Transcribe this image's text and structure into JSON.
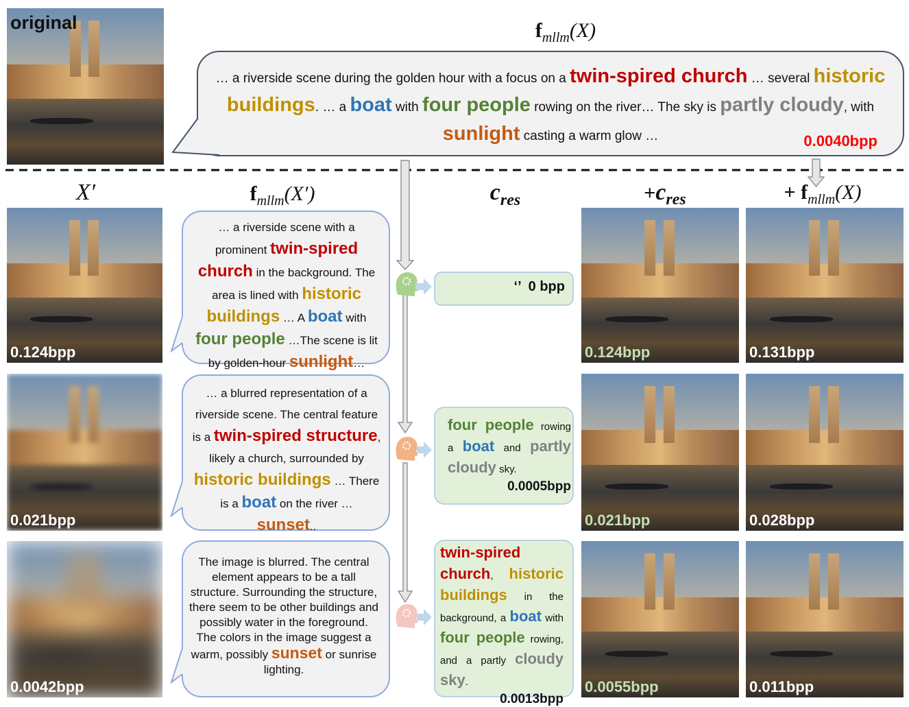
{
  "original_label": "original",
  "top": {
    "formula": {
      "f": "f",
      "sub": "mllm",
      "arg": "(X)"
    },
    "caption": [
      {
        "text": "… a riverside scene during the golden hour with a focus on a "
      },
      {
        "text": "twin-spired church",
        "color": "#c00000"
      },
      {
        "text": " … several "
      },
      {
        "text": "historic buildings",
        "color": "#bf9000"
      },
      {
        "text": ". … a "
      },
      {
        "text": "boat",
        "color": "#2e75b6"
      },
      {
        "text": " with "
      },
      {
        "text": "four people",
        "color": "#548235"
      },
      {
        "text": " rowing on the river… The sky is "
      },
      {
        "text": "partly cloudy",
        "color": "#808080"
      },
      {
        "text": ", with "
      },
      {
        "text": "sunlight",
        "color": "#c55a11"
      },
      {
        "text": " casting a warm glow …"
      }
    ],
    "bpp": "0.0040bpp"
  },
  "headers": {
    "xprime": {
      "base": "X",
      "prime": "′"
    },
    "caption": {
      "f": "f",
      "sub": "mllm",
      "arg": "(X′)"
    },
    "cres": {
      "base": "c",
      "sub": "res"
    },
    "plus_cres": {
      "prefix": "+",
      "base": "c",
      "sub": "res"
    },
    "plus_f": {
      "prefix": "+ ",
      "f": "f",
      "sub": "mllm",
      "arg": "(X)"
    }
  },
  "rows": [
    {
      "xprime_bpp": "0.124bpp",
      "caption": [
        {
          "text": "… a riverside scene with a prominent "
        },
        {
          "text": "twin-spired church",
          "color": "#c00000"
        },
        {
          "text": " in the background. The area is lined with "
        },
        {
          "text": "historic buildings",
          "color": "#bf9000"
        },
        {
          "text": " … A "
        },
        {
          "text": "boat",
          "color": "#2e75b6"
        },
        {
          "text": " with "
        },
        {
          "text": "four people",
          "color": "#548235"
        },
        {
          "text": " …The scene is lit by golden-hour "
        },
        {
          "text": "sunlight",
          "color": "#c55a11"
        },
        {
          "text": "…"
        }
      ],
      "cres": [
        {
          "text": "‘’"
        }
      ],
      "cres_bpp": "0 bpp",
      "plus_cres_bpp": "0.124bpp",
      "plus_f_bpp": "0.131bpp"
    },
    {
      "xprime_bpp": "0.021bpp",
      "caption": [
        {
          "text": "… a blurred representation of a riverside scene. The central feature is a "
        },
        {
          "text": "twin-spired structure",
          "color": "#c00000"
        },
        {
          "text": ", likely a church, surrounded by "
        },
        {
          "text": "historic buildings",
          "color": "#bf9000"
        },
        {
          "text": " … There is a "
        },
        {
          "text": "boat",
          "color": "#2e75b6"
        },
        {
          "text": " on the river … "
        },
        {
          "text": "sunset",
          "color": "#c55a11"
        },
        {
          "text": ".."
        }
      ],
      "cres": [
        {
          "text": "four people",
          "color": "#548235"
        },
        {
          "text": " rowing a "
        },
        {
          "text": "boat",
          "color": "#2e75b6"
        },
        {
          "text": " and "
        },
        {
          "text": "partly cloudy",
          "color": "#808080"
        },
        {
          "text": " sky."
        }
      ],
      "cres_bpp": "0.0005bpp",
      "plus_cres_bpp": "0.021bpp",
      "plus_f_bpp": "0.028bpp"
    },
    {
      "xprime_bpp": "0.0042bpp",
      "caption": [
        {
          "text": "The image is blurred. The central element appears to be a tall structure. Surrounding the structure, there seem to be other buildings and possibly water in the foreground. The colors in the image suggest a warm, possibly "
        },
        {
          "text": "sunset",
          "color": "#c55a11"
        },
        {
          "text": " or sunrise lighting."
        }
      ],
      "cres": [
        {
          "text": "twin-spired church",
          "color": "#c00000"
        },
        {
          "text": ", "
        },
        {
          "text": "historic buildings",
          "color": "#bf9000"
        },
        {
          "text": " in the background, a "
        },
        {
          "text": "boat",
          "color": "#2e75b6"
        },
        {
          "text": " with "
        },
        {
          "text": "four people",
          "color": "#548235"
        },
        {
          "text": " rowing, and a partly "
        },
        {
          "text": "cloudy sky",
          "color": "#808080"
        },
        {
          "text": "."
        }
      ],
      "cres_bpp": "0.0013bpp",
      "plus_cres_bpp": "0.0055bpp",
      "plus_f_bpp": "0.011bpp"
    }
  ]
}
